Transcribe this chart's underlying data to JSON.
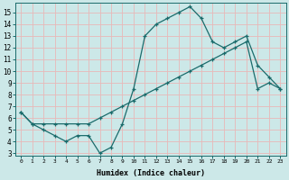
{
  "xlabel": "Humidex (Indice chaleur)",
  "bg_color": "#cce8e8",
  "grid_color": "#e8b8b8",
  "line_color": "#1a6b6b",
  "xlim": [
    -0.5,
    23.5
  ],
  "ylim": [
    2.8,
    15.8
  ],
  "xticks": [
    0,
    1,
    2,
    3,
    4,
    5,
    6,
    7,
    8,
    9,
    10,
    11,
    12,
    13,
    14,
    15,
    16,
    17,
    18,
    19,
    20,
    21,
    22,
    23
  ],
  "yticks": [
    3,
    4,
    5,
    6,
    7,
    8,
    9,
    10,
    11,
    12,
    13,
    14,
    15
  ],
  "line1_x": [
    0,
    1,
    2,
    3,
    4,
    5,
    6,
    7,
    8,
    9,
    10,
    11,
    12,
    13,
    14,
    15,
    16,
    17,
    18,
    19,
    20,
    21,
    22,
    23
  ],
  "line1_y": [
    6.5,
    5.5,
    5.0,
    4.5,
    4.0,
    4.5,
    4.5,
    3.0,
    3.5,
    5.5,
    8.5,
    13.0,
    14.0,
    14.5,
    15.0,
    15.5,
    14.5,
    12.5,
    12.0,
    12.5,
    13.0,
    10.5,
    9.5,
    8.5
  ],
  "line2_x": [
    0,
    1,
    2,
    3,
    4,
    5,
    6,
    7,
    8,
    9,
    10,
    11,
    12,
    13,
    14,
    15,
    16,
    17,
    18,
    19,
    20,
    21,
    22,
    23
  ],
  "line2_y": [
    6.5,
    5.5,
    5.5,
    5.5,
    5.5,
    5.5,
    5.5,
    6.0,
    6.5,
    7.0,
    7.5,
    8.0,
    8.5,
    9.0,
    9.5,
    10.0,
    10.5,
    11.0,
    11.5,
    12.0,
    12.5,
    8.5,
    9.0,
    8.5
  ]
}
